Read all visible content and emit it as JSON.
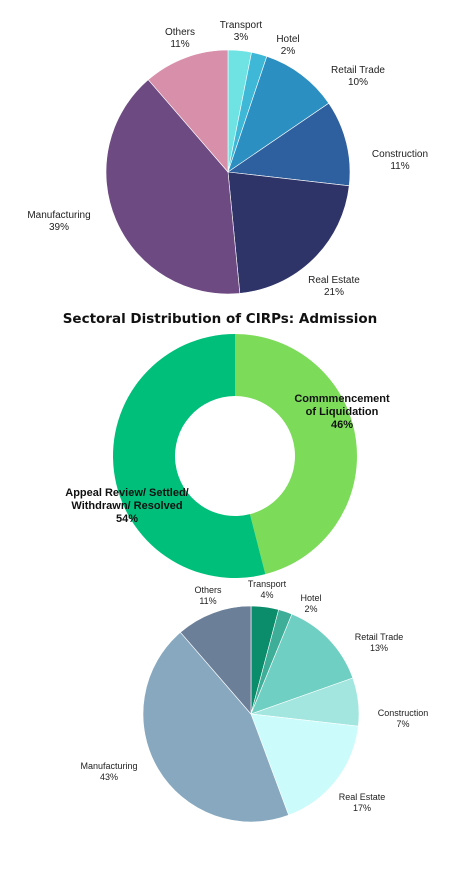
{
  "chart_data": [
    {
      "type": "pie",
      "title": "",
      "categories": [
        "Transport",
        "Hotel",
        "Retail Trade",
        "Construction",
        "Real Estate",
        "Manufacturing",
        "Others"
      ],
      "values": [
        3,
        2,
        10,
        11,
        21,
        39,
        11
      ],
      "labels": [
        "3%",
        "2%",
        "10%",
        "11%",
        "21%",
        "39%",
        "11%"
      ],
      "colors": [
        "#6fe3e3",
        "#3fb8d8",
        "#2b8fc1",
        "#2e5f9e",
        "#2f3468",
        "#6e4a82",
        "#a46c97",
        "#d88fa9"
      ],
      "values_colors_note": ""
    },
    {
      "type": "pie",
      "title": "Sectoral Distribution of CIRPs: Admission",
      "categories": [
        "Commmencement of Liquidation",
        "Appeal Review/ Settled/ Withdrawn/ Resolved"
      ],
      "values": [
        46,
        54
      ],
      "labels": [
        "46%",
        "54%"
      ],
      "colors": [
        "#7ddb5a",
        "#00bf7a"
      ]
    },
    {
      "type": "pie",
      "title": "",
      "categories": [
        "Transport",
        "Hotel",
        "Retail Trade",
        "Construction",
        "Real Estate",
        "Manufacturing",
        "Others"
      ],
      "values": [
        4,
        2,
        13,
        7,
        17,
        43,
        11
      ],
      "labels": [
        "4%",
        "2%",
        "13%",
        "7%",
        "17%",
        "43%",
        "11%"
      ],
      "colors": [
        "#0b8c6a",
        "#3fae99",
        "#6fcfc2",
        "#a3e6df",
        "#cbfbfb",
        "#a6d4e0",
        "#87a8bf",
        "#6b7f98"
      ]
    }
  ]
}
